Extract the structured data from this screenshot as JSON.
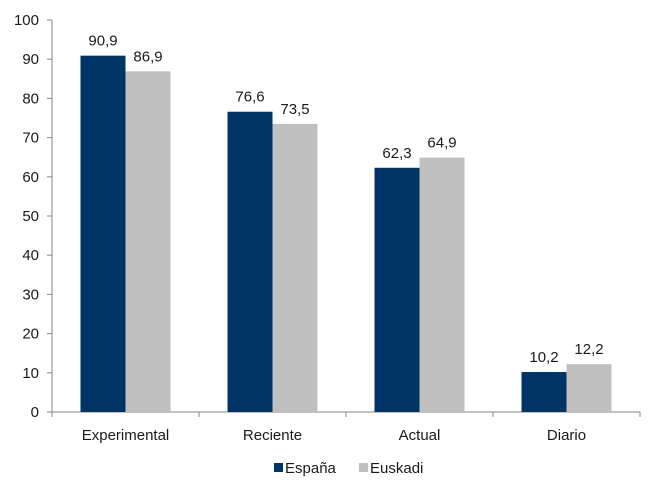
{
  "chart_data": {
    "type": "bar",
    "categories": [
      "Experimental",
      "Reciente",
      "Actual",
      "Diario"
    ],
    "series": [
      {
        "name": "España",
        "color": "#003366",
        "values": [
          90.9,
          76.6,
          62.3,
          10.2
        ],
        "labels": [
          "90,9",
          "76,6",
          "62,3",
          "10,2"
        ]
      },
      {
        "name": "Euskadi",
        "color": "#c0c0c0",
        "values": [
          86.9,
          73.5,
          64.9,
          12.2
        ],
        "labels": [
          "86,9",
          "73,5",
          "64,9",
          "12,2"
        ]
      }
    ],
    "ylim": [
      0,
      100
    ],
    "yticks": [
      "0",
      "10",
      "20",
      "30",
      "40",
      "50",
      "60",
      "70",
      "80",
      "90",
      "100"
    ],
    "grid": false,
    "legend_position": "bottom",
    "axis_color": "#868686"
  }
}
